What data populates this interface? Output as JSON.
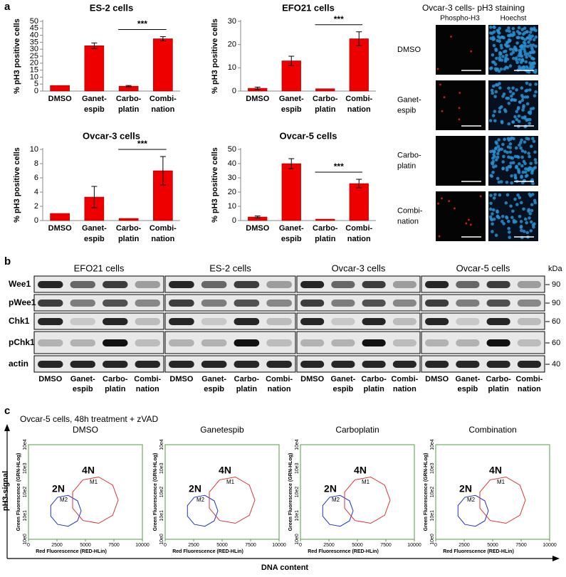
{
  "panel_labels": [
    "a",
    "b",
    "c"
  ],
  "chart_data": [
    {
      "type": "bar",
      "title": "ES-2 cells",
      "ylabel": "% pH3 positive cells",
      "categories": [
        [
          "DMSO"
        ],
        [
          "Ganet-",
          "espib"
        ],
        [
          "Carbo-",
          "platin"
        ],
        [
          "Combi-",
          "nation"
        ]
      ],
      "values": [
        4,
        32.5,
        3.5,
        37.5
      ],
      "errors": [
        null,
        2,
        0.5,
        1.5
      ],
      "color": "#ee0000",
      "ylim": [
        0,
        50
      ],
      "yticks": [
        0,
        5,
        10,
        15,
        20,
        25,
        30,
        35,
        40,
        45,
        50
      ],
      "annotation": "***"
    },
    {
      "type": "bar",
      "title": "EFO21 cells",
      "ylabel": "% pH3 positive cells",
      "categories": [
        [
          "DMSO"
        ],
        [
          "Ganet-",
          "espib"
        ],
        [
          "Carbo-",
          "platin"
        ],
        [
          "Combi-",
          "nation"
        ]
      ],
      "values": [
        1.2,
        13,
        1,
        22.5
      ],
      "errors": [
        0.5,
        2,
        null,
        3
      ],
      "color": "#ee0000",
      "ylim": [
        0,
        30
      ],
      "yticks": [
        0,
        10,
        20,
        30
      ],
      "annotation": "***"
    },
    {
      "type": "bar",
      "title": "Ovcar-3 cells",
      "ylabel": "% pH3 positive cells",
      "categories": [
        [
          "DMSO"
        ],
        [
          "Ganet-",
          "espib"
        ],
        [
          "Carbo-",
          "platin"
        ],
        [
          "Combi-",
          "nation"
        ]
      ],
      "values": [
        1,
        3.3,
        0.3,
        7
      ],
      "errors": [
        null,
        1.5,
        null,
        2
      ],
      "color": "#ee0000",
      "ylim": [
        0,
        10
      ],
      "yticks": [
        0,
        2,
        4,
        6,
        8,
        10
      ],
      "annotation": "***"
    },
    {
      "type": "bar",
      "title": "Ovcar-5 cells",
      "ylabel": "% pH3 positive cells",
      "categories": [
        [
          "DMSO"
        ],
        [
          "Ganet-",
          "espib"
        ],
        [
          "Carbo-",
          "platin"
        ],
        [
          "Combi-",
          "nation"
        ]
      ],
      "values": [
        2.5,
        40,
        1,
        26
      ],
      "errors": [
        0.7,
        3.5,
        null,
        3
      ],
      "color": "#ee0000",
      "ylim": [
        0,
        50
      ],
      "yticks": [
        0,
        10,
        20,
        30,
        40,
        50
      ],
      "annotation": "***"
    }
  ],
  "staining": {
    "title": "Ovcar-3 cells- pH3 staining",
    "columns": [
      "Phospho-H3",
      "Hoechst"
    ],
    "rows": [
      [
        "DMSO"
      ],
      [
        "Ganet-",
        "espib"
      ],
      [
        "Carbo-",
        "platin"
      ],
      [
        "Combi-",
        "nation"
      ]
    ]
  },
  "blots": {
    "unit": "kDa",
    "panels": [
      "EFO21 cells",
      "ES-2 cells",
      "Ovcar-3 cells",
      "Ovcar-5 cells"
    ],
    "proteins": [
      "Wee1",
      "pWee1",
      "Chk1",
      "pChk1",
      "actin"
    ],
    "sizes": [
      90,
      90,
      60,
      60,
      40
    ],
    "lanes": [
      [
        "DMSO"
      ],
      [
        "Ganet-",
        "espib"
      ],
      [
        "Carbo-",
        "platin"
      ],
      [
        "Combi-",
        "nation"
      ]
    ]
  },
  "flow": {
    "title": "Ovcar-5 cells, 48h treatment + zVAD",
    "y_label": "pH3-signal",
    "x_label": "DNA content",
    "panels": [
      "DMSO",
      "Ganetespib",
      "Carboplatin",
      "Combination"
    ],
    "plot_y_label": "Green Fluorescence (GRN-HLog)",
    "plot_x_label": "Red Fluorescence (RED-HLin)",
    "xlim": [
      0,
      10000
    ],
    "xticks": [
      0,
      2500,
      5000,
      7500,
      10000
    ],
    "yticks": [
      "10e0",
      "10e1",
      "10e2",
      "10e3",
      "10e4"
    ],
    "gates": [
      "M1",
      "M2"
    ],
    "ploidy": [
      "2N",
      "4N"
    ]
  }
}
